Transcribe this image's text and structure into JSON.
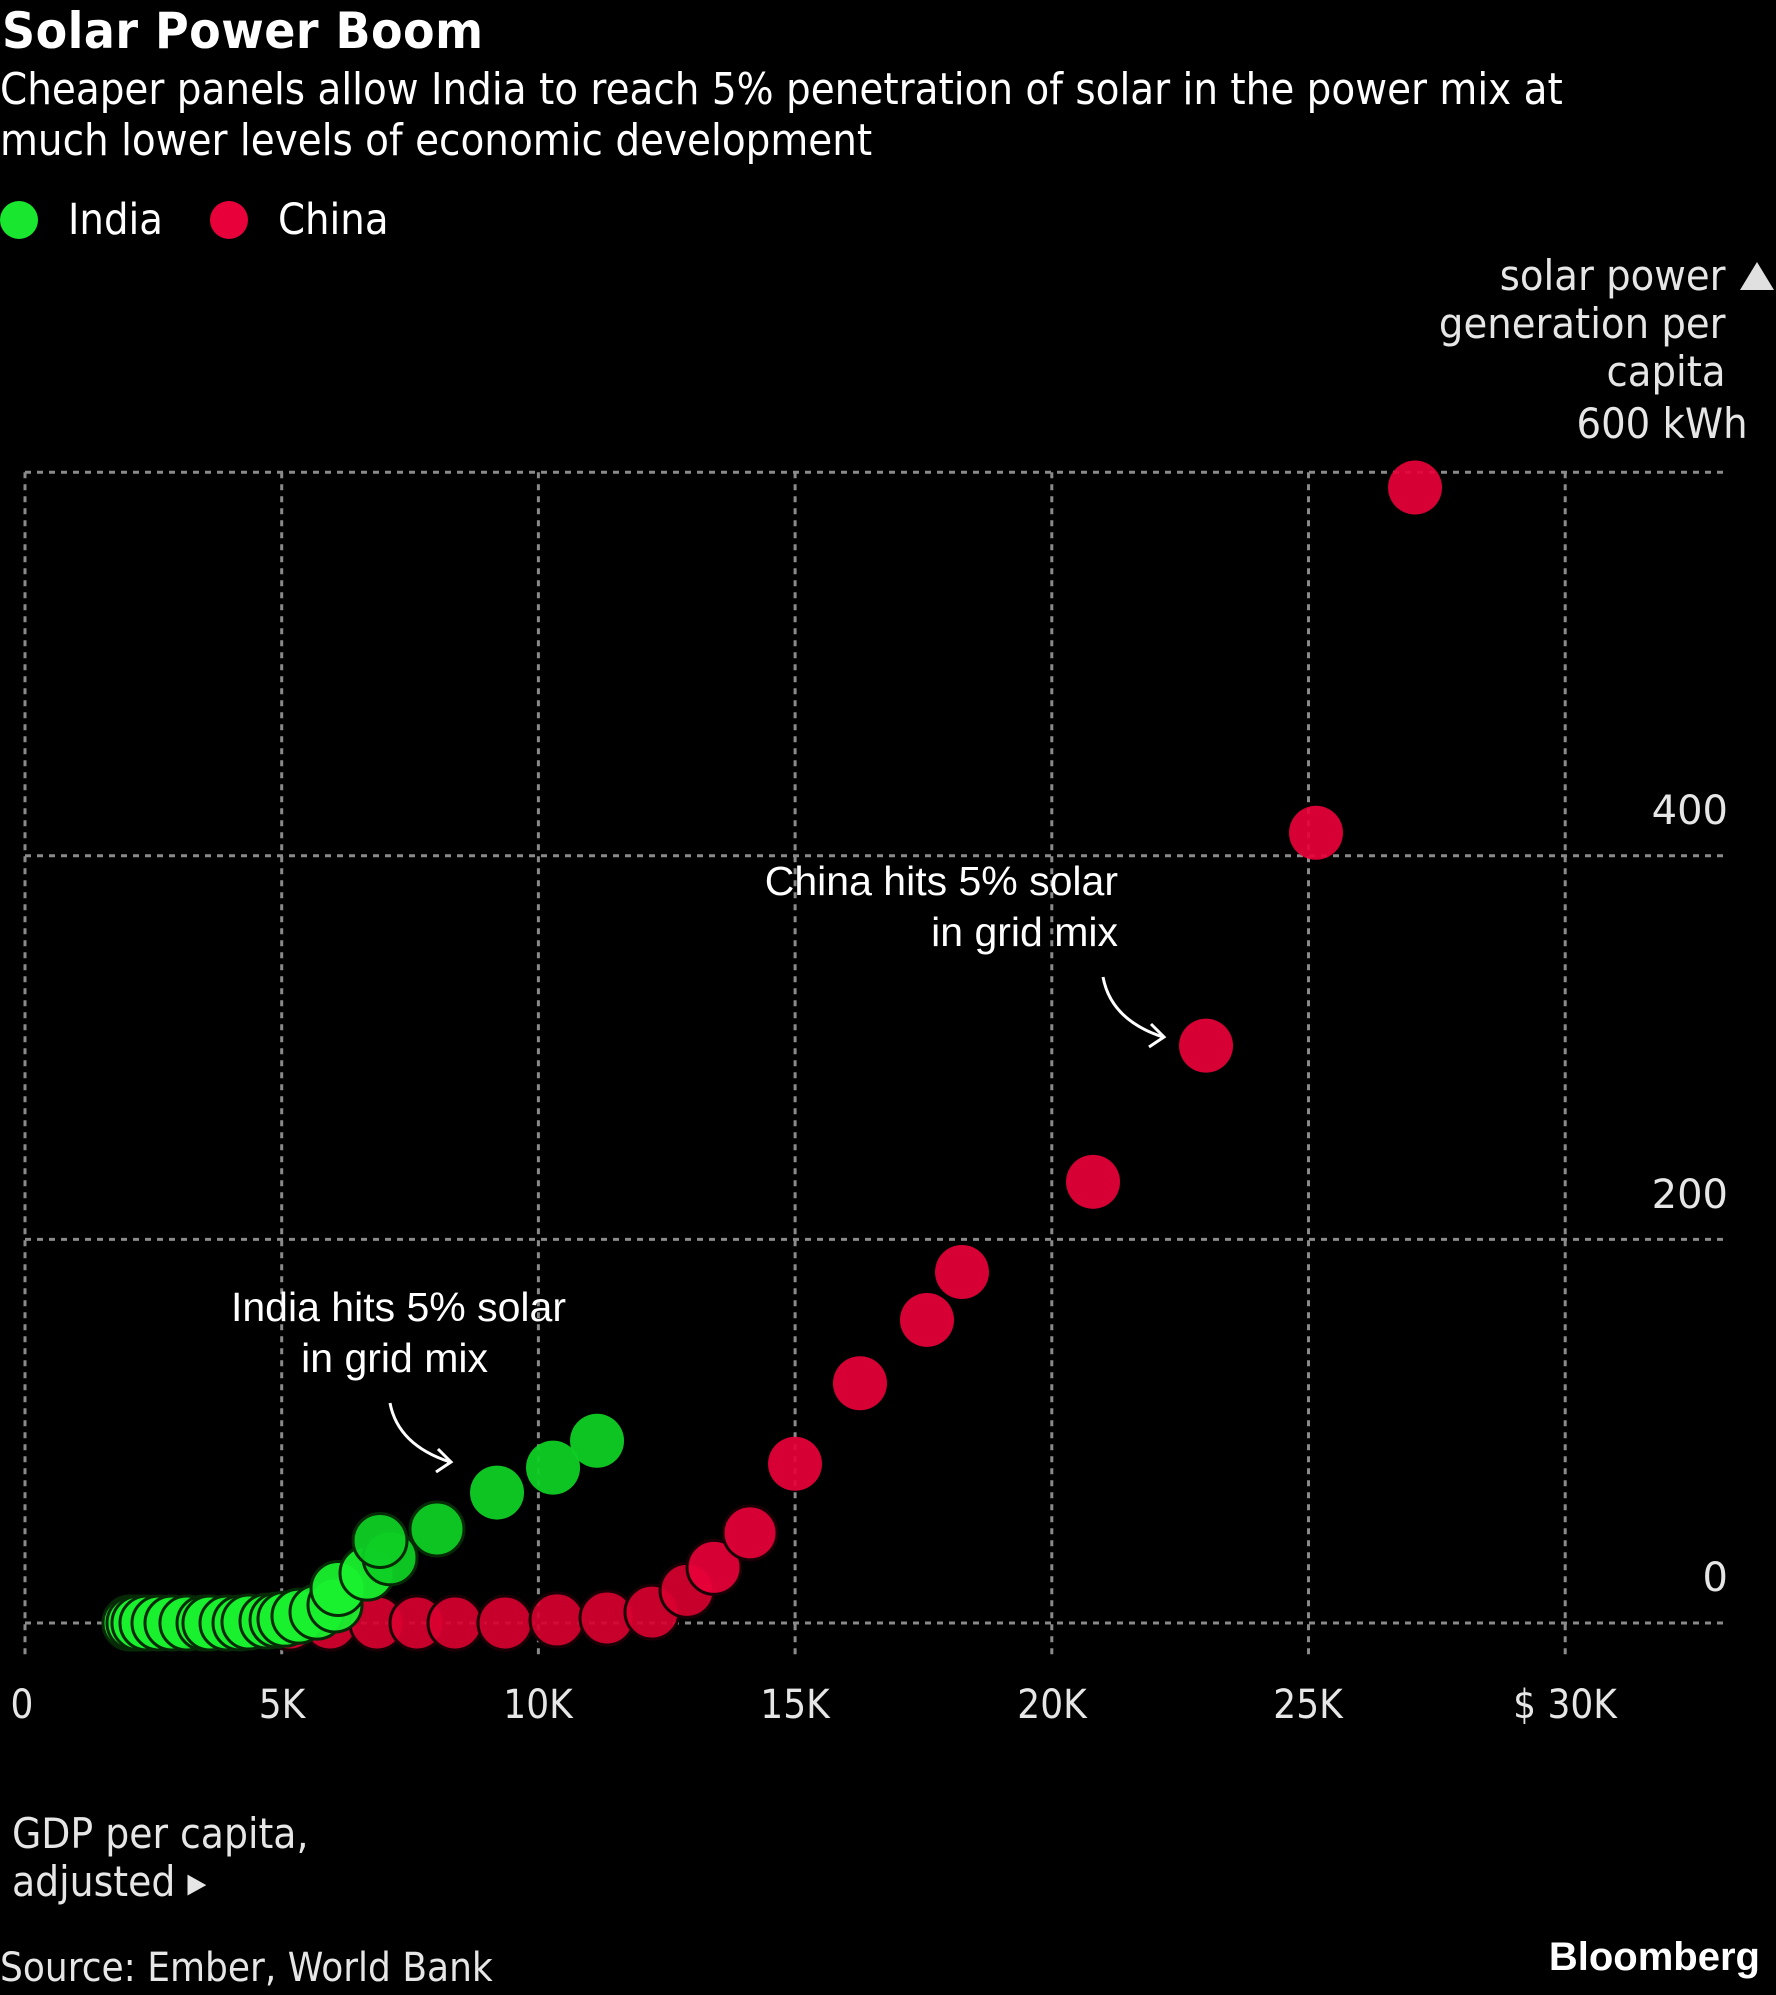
{
  "header": {
    "title": "Solar Power Boom",
    "subtitle": "Cheaper panels allow India to reach 5% penetration of solar in the power mix at much lower levels of economic development"
  },
  "legend": [
    {
      "label": "India",
      "color": "#19e62e"
    },
    {
      "label": "China",
      "color": "#e8003a"
    }
  ],
  "axes": {
    "y_title_lines": [
      "solar power",
      "generation per",
      "capita",
      "600 kWh"
    ],
    "y_ticks": [
      "400",
      "200",
      "0"
    ],
    "x_ticks": [
      "0",
      "5K",
      "10K",
      "15K",
      "20K",
      "25K",
      "$ 30K"
    ],
    "x_title_lines": [
      "GDP per capita,",
      "adjusted ▸"
    ]
  },
  "annotations": {
    "india": [
      "India hits 5% solar",
      "in grid mix"
    ],
    "china": [
      "China hits 5% solar",
      "in grid mix"
    ]
  },
  "footer": {
    "source": "Source: Ember, World Bank",
    "brand": "Bloomberg"
  },
  "chart_data": {
    "type": "scatter",
    "title": "Solar Power Boom",
    "subtitle": "Cheaper panels allow India to reach 5% penetration of solar in the power mix at much lower levels of economic development",
    "xlabel": "GDP per capita, adjusted ($)",
    "ylabel": "solar power generation per capita (kWh)",
    "xlim": [
      0,
      33000
    ],
    "ylim": [
      0,
      600
    ],
    "x_ticks": [
      0,
      5000,
      10000,
      15000,
      20000,
      25000,
      30000
    ],
    "y_ticks": [
      0,
      200,
      400,
      600
    ],
    "grid": true,
    "legend_position": "top-left",
    "series": [
      {
        "name": "India",
        "color": "#19e62e",
        "points": [
          [
            2045,
            0
          ],
          [
            2123,
            0
          ],
          [
            2220,
            0
          ],
          [
            2376,
            0
          ],
          [
            2610,
            0
          ],
          [
            2863,
            0
          ],
          [
            3155,
            0
          ],
          [
            3487,
            0
          ],
          [
            3603,
            0
          ],
          [
            3935,
            0
          ],
          [
            4188,
            0
          ],
          [
            4363,
            0.5
          ],
          [
            4714,
            1
          ],
          [
            4909,
            1.5
          ],
          [
            5064,
            2
          ],
          [
            5337,
            3.6
          ],
          [
            5688,
            5.7
          ],
          [
            6038,
            9.4
          ],
          [
            6097,
            18
          ],
          [
            6662,
            26
          ],
          [
            7110,
            34
          ],
          [
            6915,
            43
          ],
          [
            8025,
            49
          ],
          [
            9194,
            68
          ],
          [
            10285,
            81
          ],
          [
            11142,
            95
          ]
        ]
      },
      {
        "name": "China",
        "color": "#e8003a",
        "points": [
          [
            5162,
            0
          ],
          [
            5941,
            0
          ],
          [
            6857,
            0
          ],
          [
            7636,
            0
          ],
          [
            8376,
            0
          ],
          [
            9350,
            0
          ],
          [
            10363,
            1.6
          ],
          [
            11337,
            2.6
          ],
          [
            12213,
            5.7
          ],
          [
            12895,
            17
          ],
          [
            13421,
            29
          ],
          [
            14122,
            47
          ],
          [
            14998,
            83
          ],
          [
            16264,
            125
          ],
          [
            17569,
            158
          ],
          [
            18251,
            183
          ],
          [
            20803,
            230
          ],
          [
            23004,
            301
          ],
          [
            25146,
            412
          ],
          [
            27075,
            592
          ]
        ]
      }
    ],
    "annotations": [
      {
        "text": "India hits 5% solar in grid mix",
        "series": "India",
        "point": [
          7110,
          34
        ]
      },
      {
        "text": "China hits 5% solar in grid mix",
        "series": "China",
        "point": [
          17569,
          158
        ]
      }
    ]
  }
}
